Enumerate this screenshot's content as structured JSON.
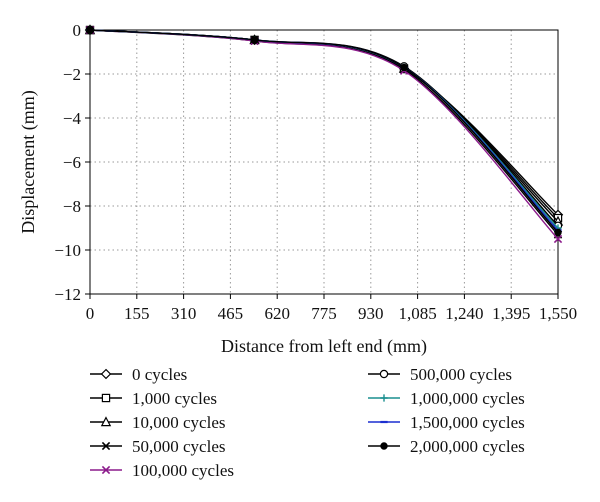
{
  "chart_data": {
    "type": "line",
    "title": "",
    "xlabel": "Distance from left end (mm)",
    "ylabel": "Displacement (mm)",
    "xlim": [
      0,
      1550
    ],
    "ylim": [
      -12,
      0
    ],
    "x_ticks": [
      0,
      155,
      310,
      465,
      620,
      775,
      930,
      1085,
      1240,
      1395,
      1550
    ],
    "x_tick_labels": [
      "0",
      "155",
      "310",
      "465",
      "620",
      "775",
      "930",
      "1,085",
      "1,240",
      "1,395",
      "1,550"
    ],
    "y_ticks": [
      0,
      -2,
      -4,
      -6,
      -8,
      -10,
      -12
    ],
    "y_tick_labels": [
      "0",
      "−2",
      "−4",
      "−6",
      "−8",
      "−10",
      "−12"
    ],
    "grid": true,
    "legend_position": "bottom",
    "x": [
      0,
      545,
      1040,
      1550
    ],
    "series": [
      {
        "name": "0 cycles",
        "values": [
          0,
          -0.45,
          -1.75,
          -8.4
        ],
        "color": "#000000",
        "marker": "diamond"
      },
      {
        "name": "1,000 cycles",
        "values": [
          0,
          -0.45,
          -1.75,
          -8.55
        ],
        "color": "#000000",
        "marker": "square"
      },
      {
        "name": "10,000 cycles",
        "values": [
          0,
          -0.45,
          -1.75,
          -8.7
        ],
        "color": "#000000",
        "marker": "triangle"
      },
      {
        "name": "50,000 cycles",
        "values": [
          0,
          -0.5,
          -1.8,
          -9.3
        ],
        "color": "#000000",
        "marker": "x"
      },
      {
        "name": "100,000 cycles",
        "values": [
          0,
          -0.5,
          -1.85,
          -9.5
        ],
        "color": "#8b1a8b",
        "marker": "x"
      },
      {
        "name": "500,000 cycles",
        "values": [
          0,
          -0.45,
          -1.65,
          -8.9
        ],
        "color": "#000000",
        "marker": "circle"
      },
      {
        "name": "1,000,000 cycles",
        "values": [
          0,
          -0.45,
          -1.7,
          -9.0
        ],
        "color": "#1a8f8f",
        "marker": "plus"
      },
      {
        "name": "1,500,000 cycles",
        "values": [
          0,
          -0.45,
          -1.7,
          -9.1
        ],
        "color": "#1c2fd0",
        "marker": "dash"
      },
      {
        "name": "2,000,000 cycles",
        "values": [
          0,
          -0.45,
          -1.7,
          -9.2
        ],
        "color": "#000000",
        "marker": "dot"
      }
    ]
  }
}
